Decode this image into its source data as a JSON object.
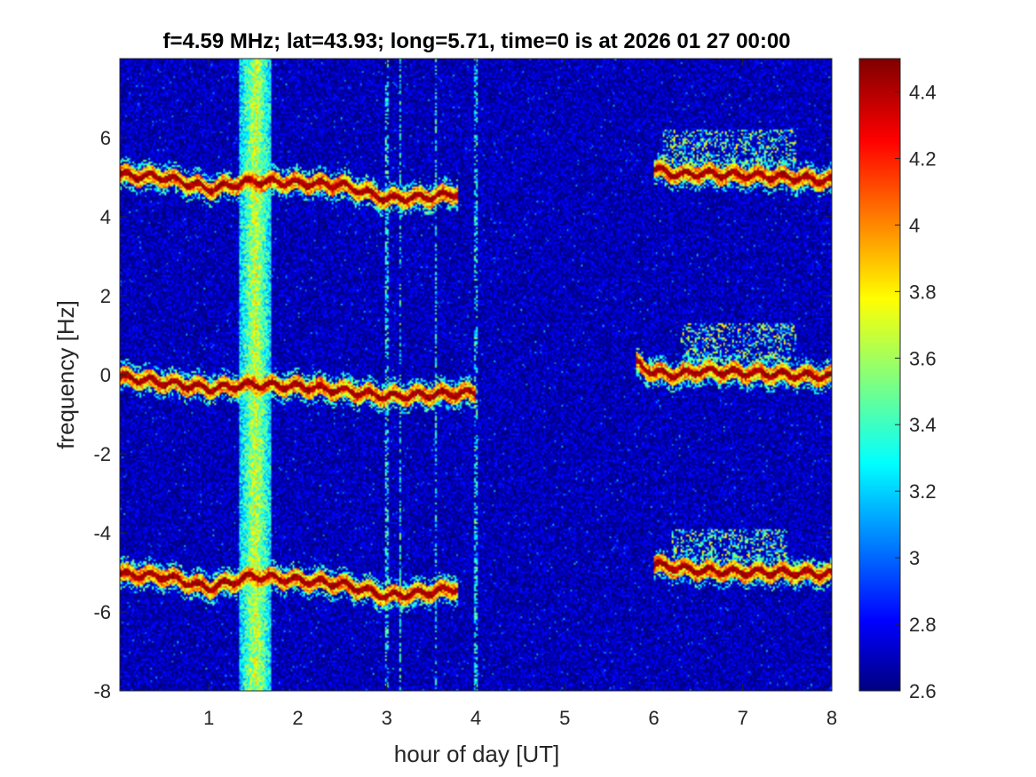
{
  "chart_data": {
    "type": "heatmap",
    "title": "f=4.59 MHz;  lat=43.93; long=5.71, time=0 is at 2026 01 27 00:00",
    "xlabel": "hour of day [UT]",
    "ylabel": "frequency [Hz]",
    "xlim": [
      0,
      8
    ],
    "ylim": [
      -8,
      8
    ],
    "x_ticks": [
      1,
      2,
      3,
      4,
      5,
      6,
      7,
      8
    ],
    "x_tick_labels": [
      "1",
      "2",
      "3",
      "4",
      "5",
      "6",
      "7",
      "8"
    ],
    "y_ticks": [
      -8,
      -6,
      -4,
      -2,
      0,
      2,
      4,
      6
    ],
    "y_tick_labels": [
      "-8",
      "-6",
      "-4",
      "-2",
      "0",
      "2",
      "4",
      "6"
    ],
    "colormap": "jet",
    "color_range": [
      2.6,
      4.5
    ],
    "colorbar_ticks": [
      2.6,
      2.8,
      3,
      3.2,
      3.4,
      3.6,
      3.8,
      4,
      4.2,
      4.4
    ],
    "colorbar_tick_labels": [
      "2.6",
      "2.8",
      "3",
      "3.2",
      "3.4",
      "3.6",
      "3.8",
      "4",
      "4.2",
      "4.4"
    ],
    "background_level": 2.7,
    "broadband_band": {
      "x_range": [
        1.35,
        1.7
      ],
      "level": 3.7
    },
    "traces": [
      {
        "x": [
          0,
          0.5,
          1.0,
          1.5,
          2.0,
          2.5,
          3.0,
          3.5,
          3.8
        ],
        "y": [
          5.05,
          5.0,
          4.7,
          4.9,
          4.85,
          4.8,
          4.45,
          4.5,
          4.6
        ]
      },
      {
        "x": [
          0,
          0.5,
          1.0,
          1.5,
          2.0,
          2.5,
          3.0,
          3.5,
          4.0
        ],
        "y": [
          -0.05,
          -0.2,
          -0.35,
          -0.25,
          -0.3,
          -0.4,
          -0.55,
          -0.5,
          -0.45
        ]
      },
      {
        "x": [
          0,
          0.5,
          1.0,
          1.5,
          2.0,
          2.5,
          3.0,
          3.5,
          3.8
        ],
        "y": [
          -5.05,
          -5.1,
          -5.4,
          -5.1,
          -5.2,
          -5.3,
          -5.6,
          -5.5,
          -5.4
        ]
      },
      {
        "x": [
          6.0,
          6.3,
          6.5,
          7.0,
          7.5,
          8.0
        ],
        "y": [
          5.2,
          5.05,
          5.1,
          5.05,
          5.0,
          4.9
        ]
      },
      {
        "x": [
          5.8,
          6.0,
          6.3,
          6.5,
          7.0,
          7.5,
          8.0
        ],
        "y": [
          0.3,
          0.05,
          0.0,
          0.1,
          0.05,
          0.0,
          -0.05
        ]
      },
      {
        "x": [
          6.0,
          6.3,
          6.5,
          7.0,
          7.5,
          8.0
        ],
        "y": [
          -4.8,
          -4.9,
          -4.95,
          -5.0,
          -5.0,
          -5.05
        ]
      }
    ],
    "spread_echoes": [
      {
        "x_range": [
          6.1,
          7.6
        ],
        "y_range": [
          5.3,
          6.2
        ]
      },
      {
        "x_range": [
          6.3,
          7.6
        ],
        "y_range": [
          0.3,
          1.3
        ]
      },
      {
        "x_range": [
          6.2,
          7.5
        ],
        "y_range": [
          -4.7,
          -3.9
        ]
      }
    ],
    "vertical_streaks": [
      3.0,
      3.15,
      3.55,
      4.0
    ]
  }
}
